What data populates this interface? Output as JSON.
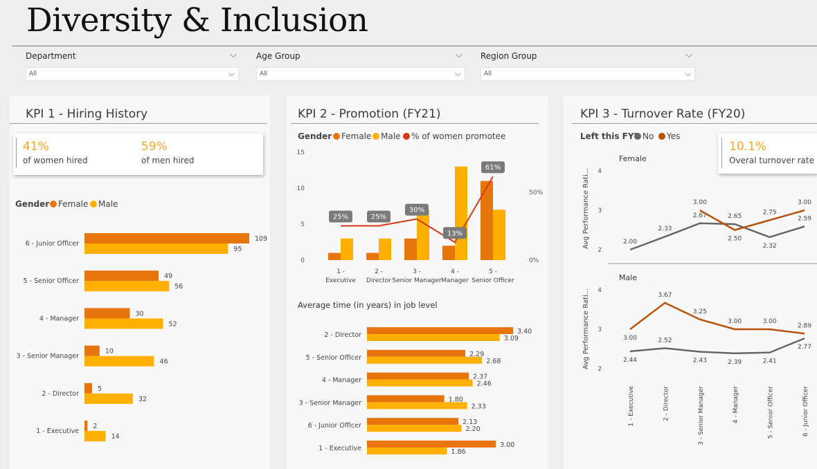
{
  "title": "Diversity & Inclusion",
  "colors": {
    "female": "#e8740c",
    "male": "#ffb000",
    "yes": "#b45309",
    "no": "#666666",
    "promotee": "#d43a14"
  },
  "filters": [
    {
      "label": "Department",
      "value": "All"
    },
    {
      "label": "Age Group",
      "value": "All"
    },
    {
      "label": "Region Group",
      "value": "All"
    }
  ],
  "kpi1": {
    "title": "KPI 1 - Hiring History",
    "women_pct": "41%",
    "women_label": "of women hired",
    "men_pct": "59%",
    "men_label": "of men hired",
    "legend_title": "Gender",
    "legend_female": "Female",
    "legend_male": "Male"
  },
  "kpi2": {
    "title": "KPI 2 - Promotion (FY21)",
    "legend_title": "Gender",
    "legend_female": "Female",
    "legend_male": "Male",
    "legend_pct": "% of women promotee",
    "avg_title": "Average time (in years) in job level"
  },
  "kpi3": {
    "title": "KPI 3 - Turnover Rate (FY20)",
    "legend_title": "Left this FY?",
    "legend_no": "No",
    "legend_yes": "Yes",
    "rate": "10.1%",
    "rate_label": "Overal turnover rate",
    "female_label": "Female",
    "male_label": "Male",
    "ylabel": "Avg Performance Rati..."
  },
  "chart_data": [
    {
      "type": "bar",
      "orientation": "horizontal",
      "categories": [
        "6 - Junior Officer",
        "5 - Senior Officer",
        "4 - Manager",
        "3 - Senior Manager",
        "2 - Director",
        "1 - Executive"
      ],
      "series": [
        {
          "name": "Female",
          "values": [
            109,
            49,
            30,
            10,
            5,
            2
          ]
        },
        {
          "name": "Male",
          "values": [
            95,
            56,
            52,
            46,
            32,
            14
          ]
        }
      ]
    },
    {
      "type": "bar",
      "categories": [
        "1 - Executive",
        "2 - Director",
        "3 - Senior Manager",
        "4 - Manager",
        "5 - Senior Officer"
      ],
      "series": [
        {
          "name": "Female",
          "values": [
            1,
            1,
            3,
            2,
            11
          ]
        },
        {
          "name": "Male",
          "values": [
            3,
            3,
            7,
            13,
            7
          ]
        }
      ],
      "line": {
        "name": "% of women promotee",
        "values": [
          25,
          25,
          30,
          13,
          61
        ],
        "labels": [
          "25%",
          "25%",
          "30%",
          "13%",
          "61%"
        ]
      },
      "yticks": [
        0,
        5,
        10,
        15
      ],
      "ylim": [
        0,
        15
      ],
      "y2ticks": [
        "0%",
        "50%"
      ]
    },
    {
      "type": "bar",
      "orientation": "horizontal",
      "title": "Average time (in years) in job level",
      "categories": [
        "2 - Director",
        "5 - Senior Officer",
        "4 - Manager",
        "3 - Senior Manager",
        "6 - Junior Officer",
        "1 - Executive"
      ],
      "series": [
        {
          "name": "Female",
          "values": [
            3.4,
            2.29,
            2.37,
            1.8,
            2.13,
            3.0
          ],
          "labels": [
            "3.40",
            "2.29",
            "2.37",
            "1.80",
            "2.13",
            "3.00"
          ]
        },
        {
          "name": "Male",
          "values": [
            3.09,
            2.68,
            2.46,
            2.33,
            2.2,
            1.86
          ],
          "labels": [
            "3.09",
            "2.68",
            "2.46",
            "2.33",
            "2.20",
            "1.86"
          ]
        }
      ]
    },
    {
      "type": "line",
      "categories": [
        "1 - Executive",
        "2 - Director",
        "3 - Senior Manager",
        "4 - Manager",
        "5 - Senior Officer",
        "6 - Junior Officer"
      ],
      "yticks": [
        2,
        3,
        4
      ],
      "ylim": [
        2,
        4
      ],
      "panels": [
        {
          "name": "Female",
          "series": [
            {
              "name": "No",
              "values": [
                2.0,
                2.33,
                2.67,
                2.65,
                2.32,
                2.59
              ],
              "labels": [
                "2.00",
                "2.33",
                "2.67",
                "2.65",
                "2.32",
                "2.59"
              ]
            },
            {
              "name": "Yes",
              "values": [
                null,
                null,
                3.0,
                2.5,
                2.75,
                3.0
              ],
              "labels": [
                "",
                "",
                "3.00",
                "2.50",
                "2.75",
                "3.00"
              ]
            }
          ]
        },
        {
          "name": "Male",
          "series": [
            {
              "name": "No",
              "values": [
                2.44,
                2.52,
                2.43,
                2.39,
                2.41,
                2.77
              ],
              "labels": [
                "2.44",
                "2.52",
                "2.43",
                "2.39",
                "2.41",
                "2.77"
              ]
            },
            {
              "name": "Yes",
              "values": [
                3.0,
                3.67,
                3.25,
                3.0,
                3.0,
                2.89
              ],
              "labels": [
                "3.00",
                "3.67",
                "3.25",
                "3.00",
                "3.00",
                "2.89"
              ]
            }
          ]
        }
      ]
    }
  ]
}
